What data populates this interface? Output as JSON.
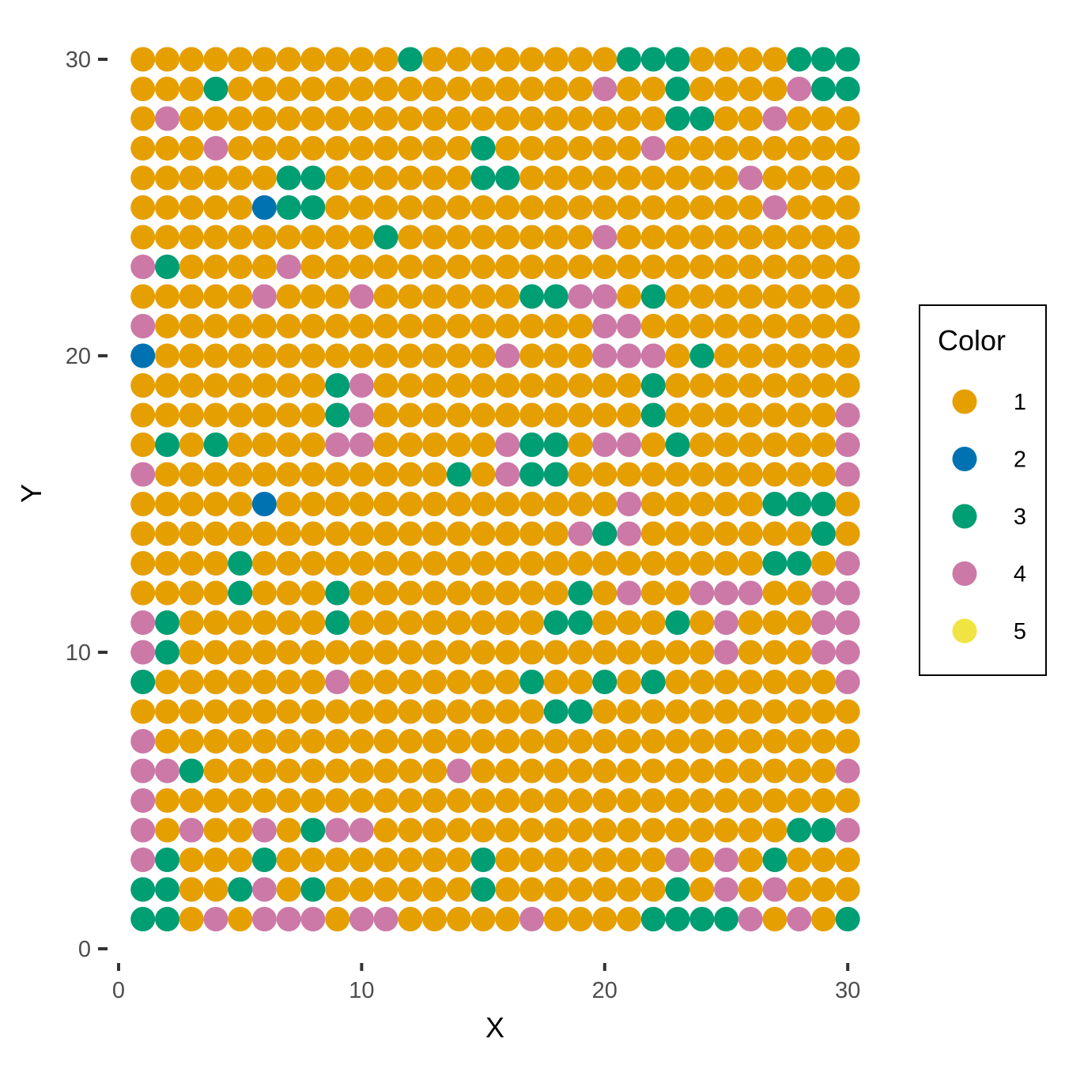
{
  "chart_data": {
    "type": "scatter",
    "title": "",
    "xlabel": "X",
    "ylabel": "Y",
    "xlim": [
      0,
      30
    ],
    "ylim": [
      0,
      30
    ],
    "xticks": [
      "0",
      "10",
      "20",
      "30"
    ],
    "yticks": [
      "0",
      "10",
      "20",
      "30"
    ],
    "grid": false,
    "legend": {
      "title": "Color",
      "position": "right",
      "entries": [
        "1",
        "2",
        "3",
        "4",
        "5"
      ]
    },
    "colors": {
      "1": "#E69F00",
      "2": "#0072B2",
      "3": "#009E73",
      "4": "#CC79A7",
      "5": "#F0E442"
    },
    "x": [
      1,
      30
    ],
    "y": [
      1,
      30
    ],
    "rows_top_to_bottom": [
      "111111111113111111113331111333",
      "111311111111111111141131111433",
      "141111111111111111111133114111",
      "111411111111113111111411111111",
      "111111331111113311111111141111",
      "111112331111111111111111114111",
      "111111111131111111141111111111",
      "431111411111111111111111111111",
      "111114111411111133441311111111",
      "411111111111111111144111111111",
      "211111111111111411144413111111",
      "111111113411111111111311111111",
      "111111113411111111111311111114",
      "131311114411111433144131111114",
      "411111111111131433111111111114",
      "111112111111111111114111113331",
      "111111111111111111434111111131",
      "111131111111111111111111113314",
      "111131113111111111314114441144",
      "431111113111111113311131411144",
      "431111111111111111111111411144",
      "311111114111111131131311111114",
      "111111111111111113311111111111",
      "411111111111111111111111111111",
      "443111111111141111111111111114",
      "411111111111111111111111111111",
      "414114134411111111111111111334",
      "431113111111113111111141413111",
      "331134131111113111111131414111",
      "331414441441111141111333341413"
    ]
  }
}
